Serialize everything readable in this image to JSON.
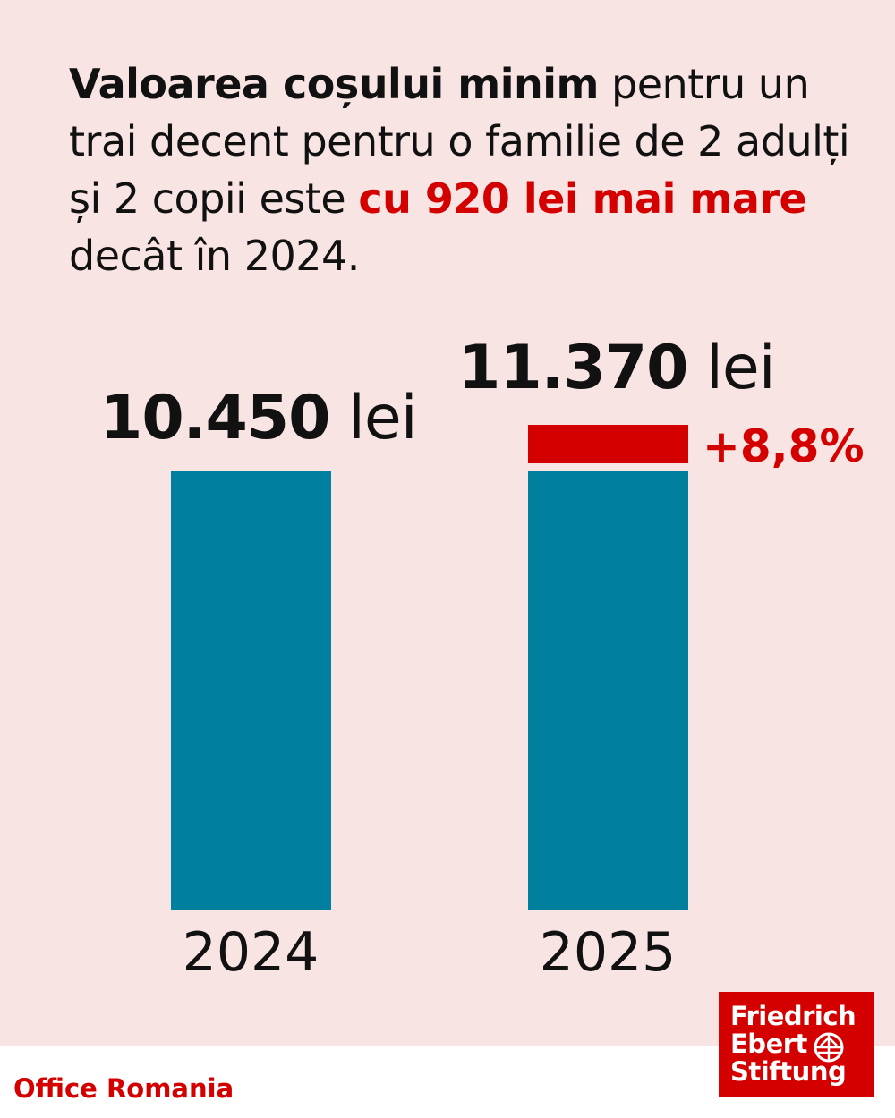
{
  "title": {
    "part1_bold": "Valoarea coșului minim",
    "part2": " pentru un trai decent pentru o familie de 2 adulți și 2 copii este ",
    "part3_red": "cu 920 lei mai mare",
    "part4": " decât în 2024."
  },
  "chart_data": {
    "type": "bar",
    "categories": [
      "2024",
      "2025"
    ],
    "values": [
      10450,
      11370
    ],
    "increase": 920,
    "increase_label": "+8,8%",
    "value_labels": [
      {
        "number": "10.450",
        "unit": " lei"
      },
      {
        "number": "11.370",
        "unit": " lei"
      }
    ],
    "colors": {
      "base": "#007f9e",
      "increase": "#d40000"
    }
  },
  "footer": {
    "office": "Office Romania"
  },
  "logo": {
    "line1": "Friedrich",
    "line2": "Ebert",
    "line3": "Stiftung"
  }
}
